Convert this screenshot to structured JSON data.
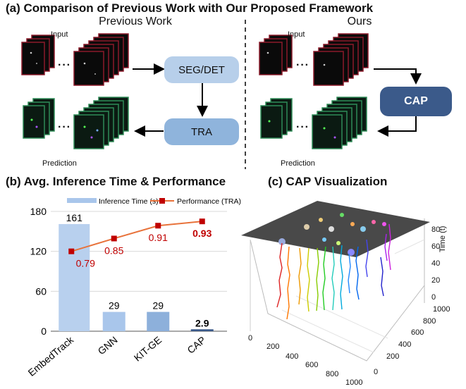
{
  "panel_a": {
    "title": "(a) Comparison of Previous Work with Our Proposed Framework",
    "previous_title": "Previous Work",
    "ours_title": "Ours",
    "input_label": "Input",
    "prediction_label": "Prediction",
    "dots": "···",
    "seg_det_label": "SEG/DET",
    "tra_label": "TRA",
    "cap_label": "CAP"
  },
  "panel_b": {
    "title": "(b) Avg. Inference Time & Performance"
  },
  "panel_c": {
    "title": "(c) CAP Visualization",
    "z_label": "Time (t)",
    "x_ticks": [
      "0",
      "200",
      "400",
      "600",
      "800",
      "1000"
    ],
    "y_ticks": [
      "0",
      "200",
      "400",
      "600",
      "800",
      "1000"
    ],
    "z_ticks": [
      "0",
      "20",
      "40",
      "60",
      "80"
    ]
  },
  "chart_data": {
    "type": "bar",
    "categories": [
      "EmbedTrack",
      "GNN",
      "KIT-GE",
      "CAP"
    ],
    "series": [
      {
        "name": "Inference Time (s)",
        "kind": "bar",
        "values": [
          161,
          29,
          29,
          2.9
        ],
        "labels": [
          "161",
          "29",
          "29",
          "2.9"
        ]
      },
      {
        "name": "Performance (TRA)",
        "kind": "line",
        "values": [
          0.79,
          0.85,
          0.91,
          0.93
        ],
        "labels": [
          "0.79",
          "0.85",
          "0.91",
          "0.93"
        ]
      }
    ],
    "y_ticks": [
      "0",
      "60",
      "120",
      "180"
    ],
    "ylim": [
      0,
      180
    ],
    "colors": {
      "bars": [
        "#b8d0ee",
        "#a9c6eb",
        "#8db0db",
        "#3b5a8a"
      ],
      "line": "#e8723a",
      "marker": "#c00000",
      "perf_label": "#c00000"
    },
    "legend_position": "top"
  }
}
